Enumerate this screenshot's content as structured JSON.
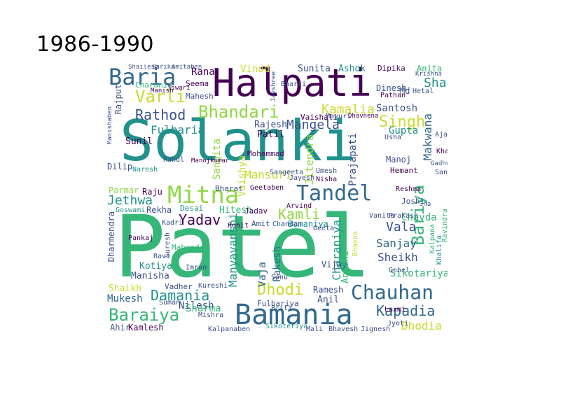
{
  "title": "1986-1990",
  "palette": {
    "purple": "#440154",
    "indigo": "#3b528b",
    "blue": "#31688e",
    "teal": "#21918c",
    "green": "#35b779",
    "lime": "#90d743",
    "yellow": "#c8dc2e"
  },
  "words": [
    {
      "id": "patel",
      "text": "Patel",
      "color": "#35b779"
    },
    {
      "id": "solanki",
      "text": "Solanki",
      "color": "#21918c"
    },
    {
      "id": "halpati",
      "text": "Halpati",
      "color": "#440154"
    },
    {
      "id": "bamania",
      "text": "Bamania",
      "color": "#31688e"
    },
    {
      "id": "mitna",
      "text": "Mitna",
      "color": "#90d743"
    },
    {
      "id": "tandel",
      "text": "Tandel",
      "color": "#31688e"
    },
    {
      "id": "baria",
      "text": "Baria",
      "color": "#31688e"
    },
    {
      "id": "bhandari",
      "text": "Bhandari",
      "color": "#90d743"
    },
    {
      "id": "chauhan",
      "text": "Chauhan",
      "color": "#31688e"
    },
    {
      "id": "bariya",
      "text": "Bariya",
      "color": "#35b779"
    },
    {
      "id": "baraiya",
      "text": "Baraiya",
      "color": "#35b779"
    },
    {
      "id": "varli",
      "text": "Varli",
      "color": "#c8dc2e"
    },
    {
      "id": "rathod",
      "text": "Rathod",
      "color": "#3b528b"
    },
    {
      "id": "mangela",
      "text": "Mangela",
      "color": "#3b528b"
    },
    {
      "id": "singh",
      "text": "Singh",
      "color": "#c8dc2e"
    },
    {
      "id": "damania",
      "text": "Damania",
      "color": "#21918c"
    },
    {
      "id": "jethwa",
      "text": "Jethwa",
      "color": "#21918c"
    },
    {
      "id": "dhodi",
      "text": "Dhodi",
      "color": "#c8dc2e"
    },
    {
      "id": "yadav",
      "text": "Yadav",
      "color": "#440154"
    },
    {
      "id": "kamli",
      "text": "Kamli",
      "color": "#90d743"
    },
    {
      "id": "kapadia",
      "text": "Kapadia",
      "color": "#31688e"
    },
    {
      "id": "kamalia",
      "text": "Kamalia",
      "color": "#c8dc2e"
    },
    {
      "id": "fulbaria",
      "text": "Fulbaria",
      "color": "#21918c"
    },
    {
      "id": "makwana",
      "text": "Makwana",
      "color": "#31688e"
    },
    {
      "id": "shah",
      "text": "Shah",
      "color": "#21918c"
    },
    {
      "id": "sanjay",
      "text": "Sanjay",
      "color": "#31688e"
    },
    {
      "id": "vala",
      "text": "Vala",
      "color": "#3b528b"
    },
    {
      "id": "sheikh",
      "text": "Sheikh",
      "color": "#3b528b"
    },
    {
      "id": "sikotariya",
      "text": "Sikotariya",
      "color": "#35b779"
    },
    {
      "id": "dhodia",
      "text": "Dhodia",
      "color": "#c8dc2e"
    },
    {
      "id": "mansuri",
      "text": "Mansuri",
      "color": "#c8dc2e"
    },
    {
      "id": "charaniya",
      "text": "Charaniya",
      "color": "#21918c"
    },
    {
      "id": "manyavanshi",
      "text": "Manyavanshi",
      "color": "#21918c"
    },
    {
      "id": "jitendra",
      "text": "Jitendra",
      "color": "#90d743"
    },
    {
      "id": "prajapati",
      "text": "Prajapati",
      "color": "#3b528b"
    },
    {
      "id": "vaishya",
      "text": "Vaishya",
      "color": "#c8dc2e"
    },
    {
      "id": "sangita",
      "text": "Sangita",
      "color": "#90d743"
    },
    {
      "id": "santosh",
      "text": "Santosh",
      "color": "#3b528b"
    },
    {
      "id": "gupta",
      "text": "Gupta",
      "color": "#21918c"
    },
    {
      "id": "rana",
      "text": "Rana",
      "color": "#440154"
    },
    {
      "id": "vinod",
      "text": "Vinod",
      "color": "#c8dc2e"
    },
    {
      "id": "sunita",
      "text": "Sunita",
      "color": "#3b528b"
    },
    {
      "id": "ashok",
      "text": "Ashok",
      "color": "#21918c"
    },
    {
      "id": "anita",
      "text": "Anita",
      "color": "#35b779"
    },
    {
      "id": "dipika",
      "text": "Dipika",
      "color": "#440154"
    },
    {
      "id": "rajesh",
      "text": "Rajesh",
      "color": "#3b528b"
    },
    {
      "id": "patil",
      "text": "Patil",
      "color": "#440154"
    },
    {
      "id": "sunil",
      "text": "Sunil",
      "color": "#440154"
    },
    {
      "id": "dilip",
      "text": "Dilip",
      "color": "#3b528b"
    },
    {
      "id": "parmar",
      "text": "Parmar",
      "color": "#90d743"
    },
    {
      "id": "raju",
      "text": "Raju",
      "color": "#440154"
    },
    {
      "id": "goswami",
      "text": "Goswami",
      "color": "#21918c"
    },
    {
      "id": "rekha",
      "text": "Rekha",
      "color": "#3b528b"
    },
    {
      "id": "desai",
      "text": "Desai",
      "color": "#21918c"
    },
    {
      "id": "hitesh",
      "text": "Hitesh",
      "color": "#35b779"
    },
    {
      "id": "jadav",
      "text": "Jadav",
      "color": "#440154"
    },
    {
      "id": "amit",
      "text": "Amit",
      "color": "#3b528b"
    },
    {
      "id": "bamaniya",
      "text": "Bamaniya",
      "color": "#21918c"
    },
    {
      "id": "vaja",
      "text": "Vaja",
      "color": "#31688e"
    },
    {
      "id": "rakesh",
      "text": "Rakesh",
      "color": "#31688e"
    },
    {
      "id": "vijay",
      "text": "Vijay",
      "color": "#3b528b"
    },
    {
      "id": "anjani",
      "text": "Anjani",
      "color": "#35b779"
    },
    {
      "id": "manoj",
      "text": "Manoj",
      "color": "#3b528b"
    },
    {
      "id": "hemant",
      "text": "Hemant",
      "color": "#440154"
    },
    {
      "id": "ajay",
      "text": "Ajay",
      "color": "#3b528b"
    },
    {
      "id": "mahendra",
      "text": "Mahendra",
      "color": "#35b779"
    },
    {
      "id": "kotiya",
      "text": "Kotiya",
      "color": "#21918c"
    },
    {
      "id": "manisha",
      "text": "Manisha",
      "color": "#3b528b"
    },
    {
      "id": "shaikh",
      "text": "Shaikh",
      "color": "#c8dc2e"
    },
    {
      "id": "mukesh",
      "text": "Mukesh",
      "color": "#31688e"
    },
    {
      "id": "vadher",
      "text": "Vadher",
      "color": "#3b528b"
    },
    {
      "id": "nilesh",
      "text": "Nilesh",
      "color": "#3b528b"
    },
    {
      "id": "sharma",
      "text": "Sharma",
      "color": "#35b779"
    },
    {
      "id": "ahir",
      "text": "Ahir",
      "color": "#3b528b"
    },
    {
      "id": "kamlesh",
      "text": "Kamlesh",
      "color": "#440154"
    },
    {
      "id": "ramesh",
      "text": "Ramesh",
      "color": "#3b528b"
    },
    {
      "id": "anil",
      "text": "Anil",
      "color": "#3b528b"
    },
    {
      "id": "fulbariya",
      "text": "Fulbariya",
      "color": "#3b528b"
    },
    {
      "id": "sikoteriya",
      "text": "Sikoteriya",
      "color": "#21918c"
    },
    {
      "id": "mali",
      "text": "Mali",
      "color": "#3b528b"
    },
    {
      "id": "bhavesh",
      "text": "Bhavesh",
      "color": "#3b528b"
    },
    {
      "id": "jignesh",
      "text": "Jignesh",
      "color": "#3b528b"
    },
    {
      "id": "jyoti",
      "text": "Jyoti",
      "color": "#3b528b"
    },
    {
      "id": "laxmi",
      "text": "Laxmi",
      "color": "#440154"
    },
    {
      "id": "gohel",
      "text": "Gohel",
      "color": "#3b528b"
    },
    {
      "id": "chavda",
      "text": "Chavda",
      "color": "#35b779"
    },
    {
      "id": "joshi",
      "text": "Joshi",
      "color": "#3b528b"
    },
    {
      "id": "reshma",
      "text": "Reshma",
      "color": "#440154"
    },
    {
      "id": "mahesh",
      "text": "Mahesh",
      "color": "#3b528b"
    },
    {
      "id": "seema",
      "text": "Seema",
      "color": "#440154"
    },
    {
      "id": "charania",
      "text": "Charania",
      "color": "#35b779"
    },
    {
      "id": "rajput",
      "text": "Rajput",
      "color": "#3b528b"
    },
    {
      "id": "mohammad",
      "text": "Mohammad",
      "color": "#440154"
    },
    {
      "id": "bharat",
      "text": "Bharat",
      "color": "#3b528b"
    },
    {
      "id": "geetaben",
      "text": "Geetaben",
      "color": "#440154"
    },
    {
      "id": "arvind",
      "text": "Arvind",
      "color": "#440154"
    },
    {
      "id": "chandan",
      "text": "Chandan",
      "color": "#3b528b"
    },
    {
      "id": "geeta",
      "text": "Geeta",
      "color": "#3b528b"
    },
    {
      "id": "umesh",
      "text": "Umesh",
      "color": "#3b528b"
    },
    {
      "id": "nisha",
      "text": "Nisha",
      "color": "#440154"
    },
    {
      "id": "sangeeta",
      "text": "Sangeeta",
      "color": "#3b528b"
    },
    {
      "id": "vaishali",
      "text": "Vaishali",
      "color": "#440154"
    },
    {
      "id": "mayuri",
      "text": "Mayuri",
      "color": "#3b528b"
    },
    {
      "id": "dhavnena",
      "text": "Dhavnena",
      "color": "#440154"
    },
    {
      "id": "dinesh",
      "text": "Dinesh",
      "color": "#3b528b"
    },
    {
      "id": "md",
      "text": "Md",
      "color": "#3b528b"
    },
    {
      "id": "pathan",
      "text": "Pathan",
      "color": "#440154"
    },
    {
      "id": "hetal",
      "text": "Hetal",
      "color": "#3b528b"
    },
    {
      "id": "ravindra",
      "text": "Ravindra",
      "color": "#35b779"
    },
    {
      "id": "khalifa",
      "text": "Khalifa",
      "color": "#21918c"
    },
    {
      "id": "kalpana",
      "text": "Kalpana",
      "color": "#35b779"
    },
    {
      "id": "vanita",
      "text": "Vanita",
      "color": "#3b528b"
    },
    {
      "id": "prakash",
      "text": "Prakash",
      "color": "#3b528b"
    },
    {
      "id": "rahul",
      "text": "Rahul",
      "color": "#3b528b"
    },
    {
      "id": "manojkumar",
      "text": "Manojkumar",
      "color": "#440154"
    },
    {
      "id": "pankaj",
      "text": "Pankaj",
      "color": "#440154"
    },
    {
      "id": "dharmendra",
      "text": "Dharmendra",
      "color": "#3b528b"
    },
    {
      "id": "suresh",
      "text": "Suresh",
      "color": "#3b528b"
    },
    {
      "id": "priti",
      "text": "Priti",
      "color": "#3b528b"
    },
    {
      "id": "kalpanaben",
      "text": "Kalpanaben",
      "color": "#3b528b"
    },
    {
      "id": "tiwari",
      "text": "Tiwari",
      "color": "#440154"
    },
    {
      "id": "manish",
      "text": "Manish",
      "color": "#440154"
    },
    {
      "id": "manishaben",
      "text": "Manishaben",
      "color": "#3b528b"
    },
    {
      "id": "shailesh",
      "text": "Shailesh",
      "color": "#3b528b"
    },
    {
      "id": "sarika",
      "text": "Sarika",
      "color": "#3b528b"
    },
    {
      "id": "amitaben",
      "text": "Amitaben",
      "color": "#3b528b"
    },
    {
      "id": "jayshree",
      "text": "Jayshree",
      "color": "#3b528b"
    },
    {
      "id": "bharti",
      "text": "Bharti",
      "color": "#3b528b"
    },
    {
      "id": "jayesh",
      "text": "Jayesh",
      "color": "#3b528b"
    },
    {
      "id": "sandip",
      "text": "Sandip",
      "color": "#3b528b"
    },
    {
      "id": "gadhvi",
      "text": "Gadhvi",
      "color": "#3b528b"
    },
    {
      "id": "khan",
      "text": "Khan",
      "color": "#440154"
    },
    {
      "id": "krishna",
      "text": "Krishna",
      "color": "#3b528b"
    },
    {
      "id": "naresh",
      "text": "Naresh",
      "color": "#21918c"
    },
    {
      "id": "usha",
      "text": "Usha",
      "color": "#3b528b"
    },
    {
      "id": "kadri",
      "text": "Kadri",
      "color": "#3b528b"
    },
    {
      "id": "kureshi",
      "text": "Kureshi",
      "color": "#3b528b"
    },
    {
      "id": "imran",
      "text": "Imran",
      "color": "#3b528b"
    },
    {
      "id": "rohit",
      "text": "Rohit",
      "color": "#440154"
    },
    {
      "id": "ravi",
      "text": "Ravi",
      "color": "#3b528b"
    },
    {
      "id": "sonu",
      "text": "Sonu",
      "color": "#3b528b"
    },
    {
      "id": "mishra",
      "text": "Mishra",
      "color": "#3b528b"
    },
    {
      "id": "suman",
      "text": "Suman",
      "color": "#3b528b"
    },
    {
      "id": "bhavna",
      "text": "Bhavna",
      "color": "#c8dc2e"
    },
    {
      "id": "jha",
      "text": "Jha",
      "color": "#3b528b"
    }
  ]
}
